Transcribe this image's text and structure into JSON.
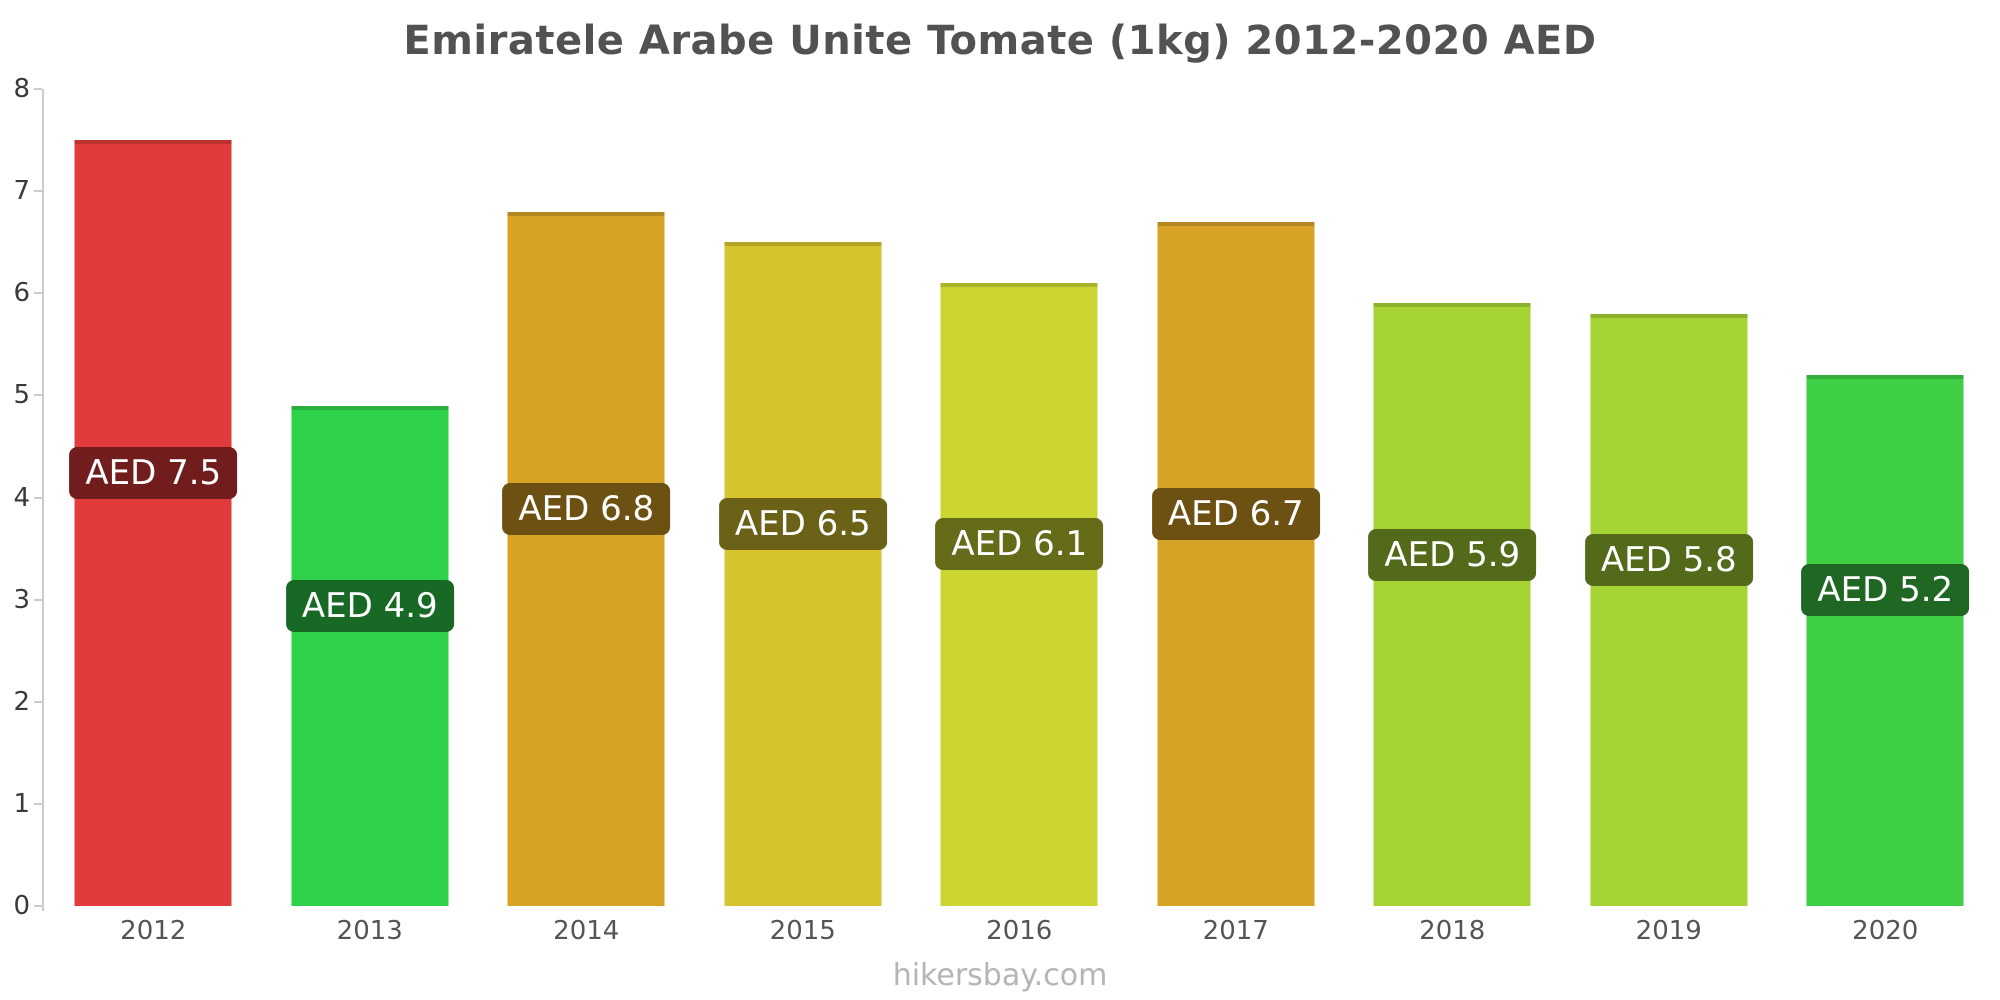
{
  "chart": {
    "title": "Emiratele Arabe Unite Tomate (1kg) 2012-2020 AED"
  },
  "footer": {
    "text": "hikersbay.com"
  },
  "chart_data": {
    "type": "bar",
    "title": "Emiratele Arabe Unite Tomate (1kg) 2012-2020 AED",
    "categories": [
      "2012",
      "2013",
      "2014",
      "2015",
      "2016",
      "2017",
      "2018",
      "2019",
      "2020"
    ],
    "values": [
      7.5,
      4.9,
      6.8,
      6.5,
      6.1,
      6.7,
      5.9,
      5.8,
      5.2
    ],
    "bar_labels": [
      "AED 7.5",
      "AED 4.9",
      "AED 6.8",
      "AED 6.5",
      "AED 6.1",
      "AED 6.7",
      "AED 5.9",
      "AED 5.8",
      "AED 5.2"
    ],
    "bar_colors": [
      "#e23b3b",
      "#2ed24a",
      "#d8a225",
      "#d6c32e",
      "#ccd633",
      "#d8a225",
      "#a6d435",
      "#a6d435",
      "#3ecf47"
    ],
    "label_bg_colors": [
      "#711d1d",
      "#176925",
      "#6c5112",
      "#6b6117",
      "#666b19",
      "#6c5112",
      "#536a1a",
      "#536a1a",
      "#1f6723"
    ],
    "xlabel": "",
    "ylabel": "",
    "ylim": [
      0,
      8
    ],
    "yticks": [
      0,
      1,
      2,
      3,
      4,
      5,
      6,
      7,
      8
    ],
    "grid": false,
    "legend": false,
    "currency": "AED"
  }
}
